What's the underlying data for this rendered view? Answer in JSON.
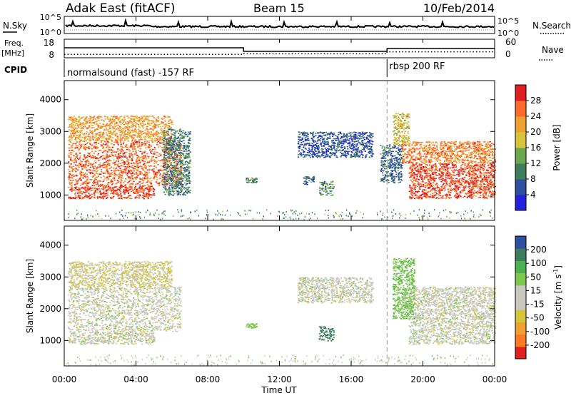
{
  "header": {
    "station": "Adak East (fitACF)",
    "beam": "Beam 15",
    "date": "10/Feb/2014"
  },
  "nsky_panel": {
    "left_label": "N.Sky",
    "left_ticks": [
      "10^5",
      "10^0"
    ],
    "right_ticks": [
      "10^5",
      "10^0"
    ],
    "right_label": "N.Search"
  },
  "freq_panel": {
    "left_label_1": "Freq.",
    "left_label_2": "[MHz]",
    "left_ticks": [
      "18",
      "8"
    ],
    "right_ticks": [
      "60",
      "0"
    ],
    "right_label": "Nave"
  },
  "cpid_panel": {
    "label": "CPID",
    "modes": [
      "normalsound (fast) -157 RF",
      "rbsp 200 RF"
    ]
  },
  "power_colorbar": {
    "label": "Power [dB]",
    "ticks": [
      "28",
      "24",
      "20",
      "16",
      "12",
      "8",
      "4"
    ]
  },
  "velocity_colorbar": {
    "label": "Velocity [m s",
    "label_sup": "-1",
    "label_end": "]",
    "ticks": [
      "200",
      "100",
      "50",
      "15",
      "-15",
      "-50",
      "-100",
      "-200"
    ]
  },
  "range_axis": {
    "label": "Slant Range [km]",
    "ticks": [
      "4000",
      "3000",
      "2000",
      "1000"
    ]
  },
  "time_axis": {
    "label": "Time UT",
    "ticks": [
      "00:00",
      "04:00",
      "08:00",
      "12:00",
      "16:00",
      "20:00",
      "00:00"
    ]
  },
  "colors": {
    "power_scale": [
      "#2222dd",
      "#2d4fa0",
      "#3f7e5c",
      "#6aa84f",
      "#d6c53a",
      "#f0a030",
      "#ff6a2a",
      "#e02020"
    ],
    "velocity_scale": [
      "#e02020",
      "#ff7a20",
      "#f0a030",
      "#d6c53a",
      "#c8c8c0",
      "#c8c8c0",
      "#7ec850",
      "#4caf50",
      "#3f7e5c",
      "#2d4fa0"
    ]
  },
  "chart_data": {
    "type": "heatmap",
    "x_unit": "hours UT",
    "xlim": [
      0,
      24
    ],
    "ylim": [
      200,
      4600
    ],
    "freq_mhz": [
      {
        "start": 0,
        "end": 10,
        "value": 15
      },
      {
        "start": 10,
        "end": 18,
        "value": 12.5
      },
      {
        "start": 18,
        "end": 24,
        "value": 14.5
      }
    ],
    "nave": [
      {
        "start": 0,
        "end": 10,
        "value": 12
      },
      {
        "start": 10,
        "end": 18,
        "value": 14
      },
      {
        "start": 18,
        "end": 24,
        "value": 21
      }
    ],
    "cpid_change_hour": 18,
    "power_regions": [
      {
        "name": "morning-band-high",
        "t0": 0.2,
        "t1": 6.0,
        "r0": 2700,
        "r1": 3500,
        "value": 22
      },
      {
        "name": "morning-band-mid",
        "t0": 0.2,
        "t1": 6.5,
        "r0": 1300,
        "r1": 2700,
        "value": 26
      },
      {
        "name": "morning-band-low",
        "t0": 0.2,
        "t1": 5.0,
        "r0": 900,
        "r1": 1300,
        "value": 28
      },
      {
        "name": "morning-edge",
        "t0": 5.5,
        "t1": 7.0,
        "r0": 1000,
        "r1": 3100,
        "value": 10
      },
      {
        "name": "patch-1",
        "t0": 10.1,
        "t1": 10.7,
        "r0": 1400,
        "r1": 1550,
        "value": 12
      },
      {
        "name": "patch-2",
        "t0": 13.3,
        "t1": 13.9,
        "r0": 1350,
        "r1": 1600,
        "value": 8
      },
      {
        "name": "patch-3",
        "t0": 14.2,
        "t1": 15.0,
        "r0": 1000,
        "r1": 1450,
        "value": 12
      },
      {
        "name": "upper-arc",
        "t0": 13.0,
        "t1": 17.2,
        "r0": 2200,
        "r1": 3000,
        "value": 6
      },
      {
        "name": "dusk-edge",
        "t0": 17.6,
        "t1": 18.8,
        "r0": 1400,
        "r1": 2600,
        "value": 8
      },
      {
        "name": "evening-band-high",
        "t0": 18.8,
        "t1": 24,
        "r0": 2000,
        "r1": 2700,
        "value": 24
      },
      {
        "name": "evening-band-low",
        "t0": 19.2,
        "t1": 24,
        "r0": 900,
        "r1": 2000,
        "value": 28
      },
      {
        "name": "evening-plume",
        "t0": 18.3,
        "t1": 19.2,
        "r0": 2600,
        "r1": 3600,
        "value": 18
      }
    ],
    "velocity_regions": [
      {
        "name": "morning-band-high",
        "t0": 0.2,
        "t1": 6.0,
        "r0": 2700,
        "r1": 3500,
        "value": -15
      },
      {
        "name": "morning-band-mid",
        "t0": 0.2,
        "t1": 6.5,
        "r0": 1300,
        "r1": 2700,
        "value": 0
      },
      {
        "name": "morning-band-low",
        "t0": 0.2,
        "t1": 5.0,
        "r0": 900,
        "r1": 1300,
        "value": 0
      },
      {
        "name": "patch-1",
        "t0": 10.1,
        "t1": 10.7,
        "r0": 1400,
        "r1": 1550,
        "value": 30
      },
      {
        "name": "patch-3",
        "t0": 14.2,
        "t1": 15.0,
        "r0": 1000,
        "r1": 1450,
        "value": 150
      },
      {
        "name": "upper-arc",
        "t0": 13.0,
        "t1": 17.2,
        "r0": 2200,
        "r1": 3000,
        "value": 0
      },
      {
        "name": "evening-band-high",
        "t0": 18.8,
        "t1": 24,
        "r0": 2000,
        "r1": 2700,
        "value": 0
      },
      {
        "name": "evening-band-low",
        "t0": 19.2,
        "t1": 24,
        "r0": 900,
        "r1": 2000,
        "value": 0
      },
      {
        "name": "evening-plume",
        "t0": 18.3,
        "t1": 19.5,
        "r0": 1700,
        "r1": 3600,
        "value": 40
      }
    ]
  }
}
